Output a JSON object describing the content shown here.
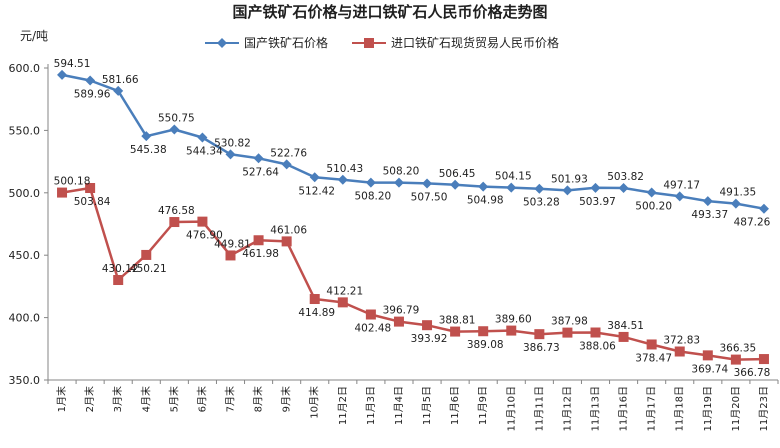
{
  "chart_data": {
    "type": "line",
    "title": "国产铁矿石价格与进口铁矿石人民币价格走势图",
    "ylabel": "元/吨",
    "ylim": [
      350,
      600
    ],
    "yticks": [
      "600.0",
      "550.0",
      "500.0",
      "450.0",
      "400.0",
      "350.0"
    ],
    "ytick_values": [
      600,
      550,
      500,
      450,
      400,
      350
    ],
    "legend_position": "top",
    "categories": [
      "1月末",
      "2月末",
      "3月末",
      "4月末",
      "5月末",
      "6月末",
      "7月末",
      "8月末",
      "9月末",
      "10月末",
      "11月2日",
      "11月3日",
      "11月4日",
      "11月5日",
      "11月6日",
      "11月9日",
      "11月10日",
      "11月11日",
      "11月12日",
      "11月13日",
      "11月16日",
      "11月17日",
      "11月18日",
      "11月19日",
      "11月20日",
      "11月23日"
    ],
    "series": [
      {
        "name": "国产铁矿石价格",
        "color": "#4a7ebb",
        "marker": "diamond",
        "values": [
          594.51,
          589.96,
          581.66,
          545.38,
          550.75,
          544.34,
          530.82,
          527.64,
          522.76,
          512.42,
          510.43,
          508.2,
          508.2,
          507.5,
          506.45,
          504.98,
          504.15,
          503.28,
          501.93,
          503.97,
          503.82,
          500.2,
          497.17,
          493.37,
          491.35,
          487.26
        ],
        "labels": [
          "594.51",
          "589.96",
          "581.66",
          "545.38",
          "550.75",
          "544.34",
          "530.82",
          "527.64",
          "522.76",
          "512.42",
          "510.43",
          "508.20",
          "508.20",
          "507.50",
          "506.45",
          "504.98",
          "504.15",
          "503.28",
          "501.93",
          "503.97",
          "503.82",
          "500.20",
          "497.17",
          "493.37",
          "491.35",
          "487.26"
        ]
      },
      {
        "name": "进口铁矿石现货贸易人民币价格",
        "color": "#c0504d",
        "marker": "square",
        "values": [
          500.18,
          503.84,
          430.12,
          450.21,
          476.58,
          476.9,
          449.81,
          461.98,
          461.06,
          414.89,
          412.21,
          402.48,
          396.79,
          393.92,
          388.81,
          389.08,
          389.6,
          386.73,
          387.98,
          388.06,
          384.51,
          378.47,
          372.83,
          369.74,
          366.35,
          366.78
        ],
        "labels": [
          "500.18",
          "503.84",
          "430.12",
          "450.21",
          "476.58",
          "476.90",
          "449.81",
          "461.98",
          "461.06",
          "414.89",
          "412.21",
          "402.48",
          "396.79",
          "393.92",
          "388.81",
          "389.08",
          "389.60",
          "386.73",
          "387.98",
          "388.06",
          "384.51",
          "378.47",
          "372.83",
          "369.74",
          "366.35",
          "366.78"
        ]
      }
    ]
  }
}
